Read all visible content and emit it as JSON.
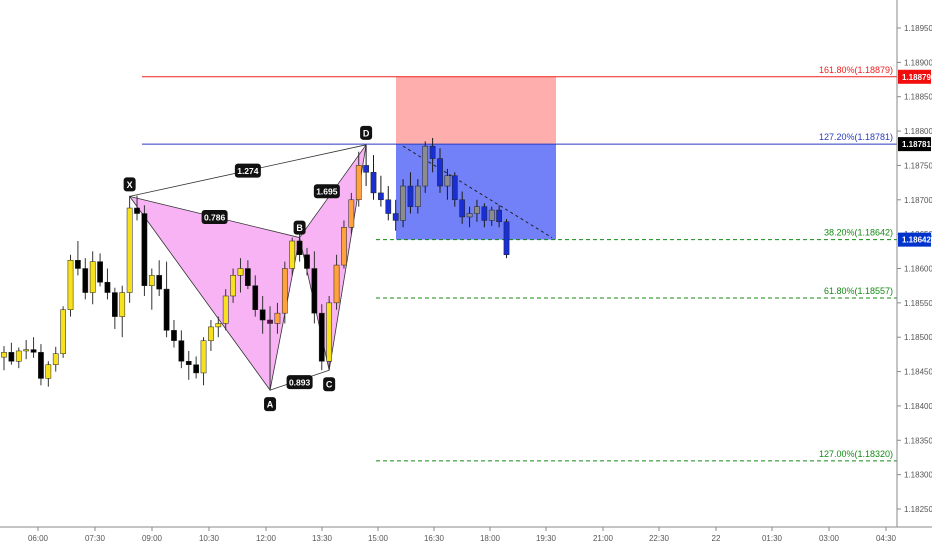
{
  "chart_data": {
    "type": "candlestick",
    "y_axis": {
      "ticks": [
        "1.18950",
        "1.18900",
        "1.18850",
        "1.18800",
        "1.18750",
        "1.18700",
        "1.18650",
        "1.18600",
        "1.18550",
        "1.18500",
        "1.18450",
        "1.18400",
        "1.18350",
        "1.18300",
        "1.18250"
      ],
      "range": [
        1.18225,
        1.18985
      ]
    },
    "x_axis": {
      "ticks": [
        "06:00",
        "07:30",
        "09:00",
        "10:30",
        "12:00",
        "13:30",
        "15:00",
        "16:30",
        "18:00",
        "19:30",
        "21:00",
        "22:30",
        "22",
        "01:30",
        "03:00",
        "04:30"
      ]
    },
    "price_badges": [
      {
        "value": "1.18879",
        "color": "#f20d0d",
        "text_color": "#ffffff"
      },
      {
        "value": "1.18781",
        "color": "#000000",
        "text_color": "#ffffff"
      },
      {
        "value": "1.18642",
        "color": "#0033cc",
        "text_color": "#ffffff"
      }
    ],
    "levels": [
      {
        "label": "161.80%(1.18879)",
        "price": 1.18879,
        "color": "#ef2020",
        "style": "solid"
      },
      {
        "label": "127.20%(1.18781)",
        "price": 1.18781,
        "color": "#2a3bbd",
        "style": "solid"
      },
      {
        "label": "38.20%(1.18642)",
        "price": 1.18642,
        "color": "#138a13",
        "style": "dashed"
      },
      {
        "label": "61.80%(1.18557)",
        "price": 1.18557,
        "color": "#138a13",
        "style": "dashed"
      },
      {
        "label": "127.00%(1.18320)",
        "price": 1.1832,
        "color": "#138a13",
        "style": "dashed"
      }
    ],
    "pattern": {
      "points": [
        {
          "label": "X",
          "bar": 17,
          "price": 1.18705
        },
        {
          "label": "A",
          "bar": 36,
          "price": 1.18423
        },
        {
          "label": "B",
          "bar": 40,
          "price": 1.18645
        },
        {
          "label": "C",
          "bar": 44,
          "price": 1.18452
        },
        {
          "label": "D",
          "bar": 49,
          "price": 1.1878
        }
      ],
      "ratios": [
        {
          "text": "1.274",
          "from": "X",
          "to": "D"
        },
        {
          "text": "0.786",
          "from": "X",
          "to": "B"
        },
        {
          "text": "0.893",
          "from": "A",
          "to": "C"
        },
        {
          "text": "1.695",
          "from": "B",
          "to": "D"
        }
      ]
    },
    "candles": [
      [
        1.18471,
        1.18487,
        1.18452,
        1.18478
      ],
      [
        1.18478,
        1.18492,
        1.1846,
        1.18465
      ],
      [
        1.18465,
        1.18485,
        1.18455,
        1.1848
      ],
      [
        1.1848,
        1.18496,
        1.18468,
        1.18482
      ],
      [
        1.18482,
        1.185,
        1.1847,
        1.18478
      ],
      [
        1.18478,
        1.1849,
        1.1843,
        1.1844
      ],
      [
        1.1844,
        1.18465,
        1.18428,
        1.1846
      ],
      [
        1.1846,
        1.18486,
        1.1845,
        1.18476
      ],
      [
        1.18476,
        1.18545,
        1.1847,
        1.1854
      ],
      [
        1.1854,
        1.1862,
        1.1853,
        1.18612
      ],
      [
        1.18612,
        1.1864,
        1.1859,
        1.186
      ],
      [
        1.186,
        1.18615,
        1.18555,
        1.18565
      ],
      [
        1.18565,
        1.18625,
        1.18548,
        1.1861
      ],
      [
        1.1861,
        1.18622,
        1.18574,
        1.1858
      ],
      [
        1.1858,
        1.186,
        1.18555,
        1.18565
      ],
      [
        1.18565,
        1.18572,
        1.18512,
        1.1853
      ],
      [
        1.1853,
        1.18575,
        1.185,
        1.18565
      ],
      [
        1.18565,
        1.18705,
        1.1855,
        1.18688
      ],
      [
        1.18688,
        1.18706,
        1.1867,
        1.1868
      ],
      [
        1.1868,
        1.18692,
        1.1856,
        1.18575
      ],
      [
        1.18575,
        1.186,
        1.1854,
        1.1859
      ],
      [
        1.1859,
        1.18612,
        1.1856,
        1.1857
      ],
      [
        1.1857,
        1.1861,
        1.185,
        1.1851
      ],
      [
        1.1851,
        1.18525,
        1.18485,
        1.18495
      ],
      [
        1.18495,
        1.1851,
        1.18455,
        1.18465
      ],
      [
        1.18465,
        1.1848,
        1.18438,
        1.1846
      ],
      [
        1.1846,
        1.18472,
        1.1844,
        1.18448
      ],
      [
        1.18448,
        1.185,
        1.1843,
        1.18495
      ],
      [
        1.18495,
        1.18525,
        1.1848,
        1.18515
      ],
      [
        1.18515,
        1.1853,
        1.185,
        1.1852
      ],
      [
        1.1852,
        1.1857,
        1.1851,
        1.1856
      ],
      [
        1.1856,
        1.186,
        1.1855,
        1.1859
      ],
      [
        1.1859,
        1.18615,
        1.18565,
        1.186
      ],
      [
        1.186,
        1.18612,
        1.1857,
        1.18575
      ],
      [
        1.18575,
        1.1859,
        1.1853,
        1.1854
      ],
      [
        1.1854,
        1.1856,
        1.18505,
        1.18525
      ],
      [
        1.18525,
        1.18545,
        1.18423,
        1.1852
      ],
      [
        1.1852,
        1.1855,
        1.18505,
        1.18535
      ],
      [
        1.18535,
        1.1861,
        1.1852,
        1.186
      ],
      [
        1.186,
        1.18645,
        1.1859,
        1.1864
      ],
      [
        1.1864,
        1.1866,
        1.1861,
        1.1862
      ],
      [
        1.1862,
        1.1863,
        1.1859,
        1.186
      ],
      [
        1.186,
        1.18625,
        1.1852,
        1.18535
      ],
      [
        1.18535,
        1.18548,
        1.18452,
        1.18465
      ],
      [
        1.18465,
        1.1856,
        1.18452,
        1.1855
      ],
      [
        1.1855,
        1.1862,
        1.1854,
        1.18605
      ],
      [
        1.18605,
        1.1867,
        1.186,
        1.1866
      ],
      [
        1.1866,
        1.1871,
        1.1865,
        1.187
      ],
      [
        1.187,
        1.1877,
        1.1869,
        1.1875
      ],
      [
        1.1875,
        1.1878,
        1.1872,
        1.1874
      ],
      [
        1.1874,
        1.18765,
        1.187,
        1.1871
      ],
      [
        1.1871,
        1.18735,
        1.1869,
        1.187
      ],
      [
        1.187,
        1.1872,
        1.1867,
        1.1868
      ],
      [
        1.1868,
        1.187,
        1.18655,
        1.1867
      ],
      [
        1.1867,
        1.1873,
        1.1866,
        1.1872
      ],
      [
        1.1872,
        1.1874,
        1.1868,
        1.1869
      ],
      [
        1.1869,
        1.1873,
        1.1868,
        1.1872
      ],
      [
        1.1872,
        1.18785,
        1.1871,
        1.18778
      ],
      [
        1.18778,
        1.1879,
        1.1874,
        1.1876
      ],
      [
        1.1876,
        1.18775,
        1.1871,
        1.1872
      ],
      [
        1.1872,
        1.18745,
        1.187,
        1.18735
      ],
      [
        1.18735,
        1.1874,
        1.1869,
        1.187
      ],
      [
        1.187,
        1.18712,
        1.18665,
        1.18675
      ],
      [
        1.18675,
        1.1869,
        1.1866,
        1.1868
      ],
      [
        1.1868,
        1.187,
        1.18668,
        1.1869
      ],
      [
        1.1869,
        1.18695,
        1.1866,
        1.1867
      ],
      [
        1.1867,
        1.1869,
        1.18662,
        1.18685
      ],
      [
        1.18685,
        1.18692,
        1.1866,
        1.18668
      ],
      [
        1.18668,
        1.18672,
        1.18615,
        1.1862
      ]
    ]
  }
}
